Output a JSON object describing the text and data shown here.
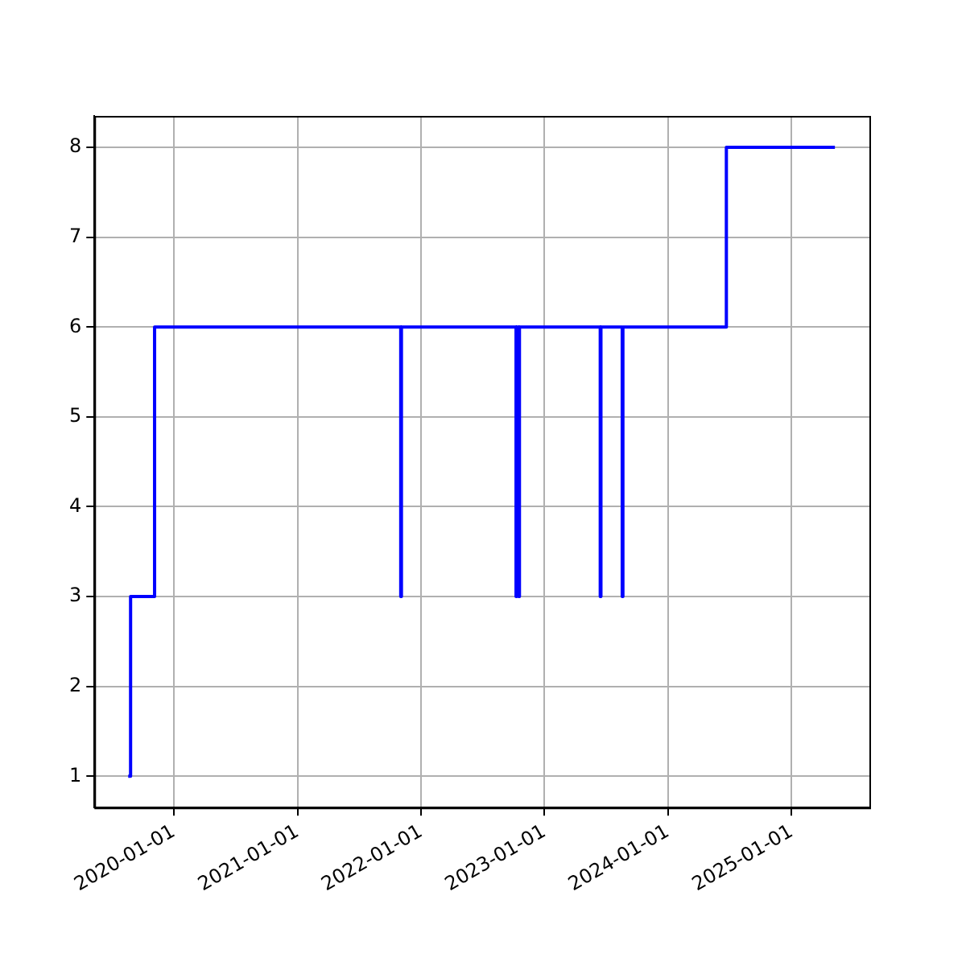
{
  "chart_data": {
    "type": "step",
    "x": [
      "2019-08-19",
      "2019-08-26",
      "2019-11-05",
      "2021-11-02",
      "2021-11-04",
      "2022-10-09",
      "2022-10-11",
      "2022-10-17",
      "2022-10-19",
      "2023-06-15",
      "2023-06-17",
      "2023-08-19",
      "2023-08-21",
      "2024-06-22",
      "2025-05-09"
    ],
    "series": [
      {
        "color": "#0000ff",
        "values": [
          1,
          3,
          6,
          3,
          6,
          3,
          6,
          3,
          6,
          3,
          6,
          3,
          6,
          8,
          8
        ]
      }
    ],
    "xlim": [
      "2019-05-11",
      "2025-08-19"
    ],
    "xticks": [
      "2020-01-01",
      "2021-01-01",
      "2022-01-01",
      "2023-01-01",
      "2024-01-01",
      "2025-01-01"
    ],
    "ylim": [
      0.65,
      8.35
    ],
    "yticks": [
      1,
      2,
      3,
      4,
      5,
      6,
      7,
      8
    ],
    "grid": true,
    "legend": false,
    "line_style": "solid",
    "marker": "none"
  }
}
